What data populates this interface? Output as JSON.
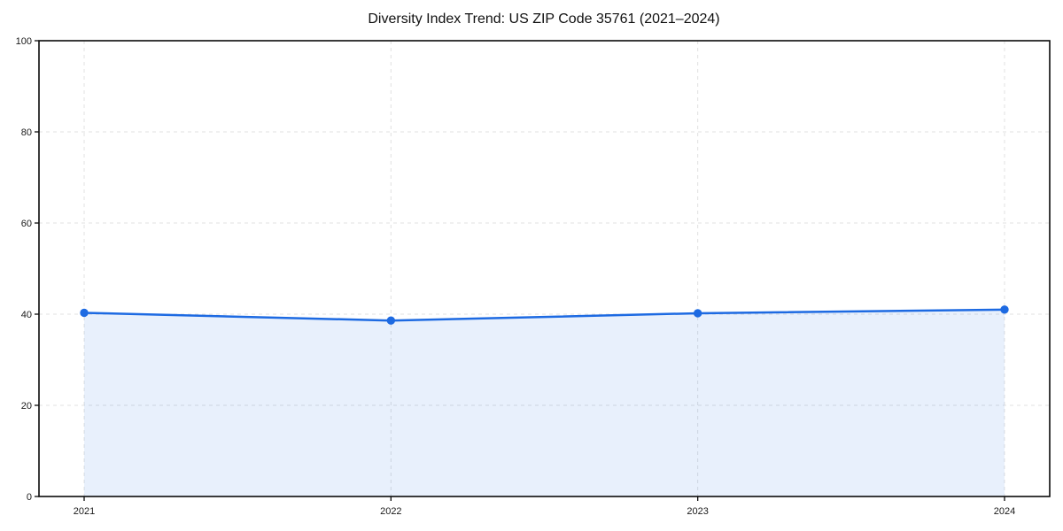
{
  "chart_data": {
    "type": "area",
    "title": "Diversity Index Trend: US ZIP Code 35761 (2021–2024)",
    "series_name": "Diversity Index",
    "categories": [
      "2021",
      "2022",
      "2023",
      "2024"
    ],
    "values": [
      40.3,
      38.6,
      40.2,
      41.0
    ],
    "xlabel": "",
    "ylabel": "",
    "ylim": [
      0,
      100
    ],
    "yticks": [
      0,
      20,
      40,
      60,
      80,
      100
    ],
    "xticks": [
      "2021",
      "2022",
      "2023",
      "2024"
    ],
    "grid": "dashed",
    "legend": "none",
    "marker": "circle",
    "colors": {
      "line": "#1d6ae2",
      "marker": "#1d6ae2",
      "fill": "rgba(29,106,226,0.10)",
      "grid": "#e0e0e0",
      "spine": "#0a0a0a",
      "title": "#111111",
      "tick_label": "#1a1a1a",
      "background": "#ffffff"
    }
  }
}
